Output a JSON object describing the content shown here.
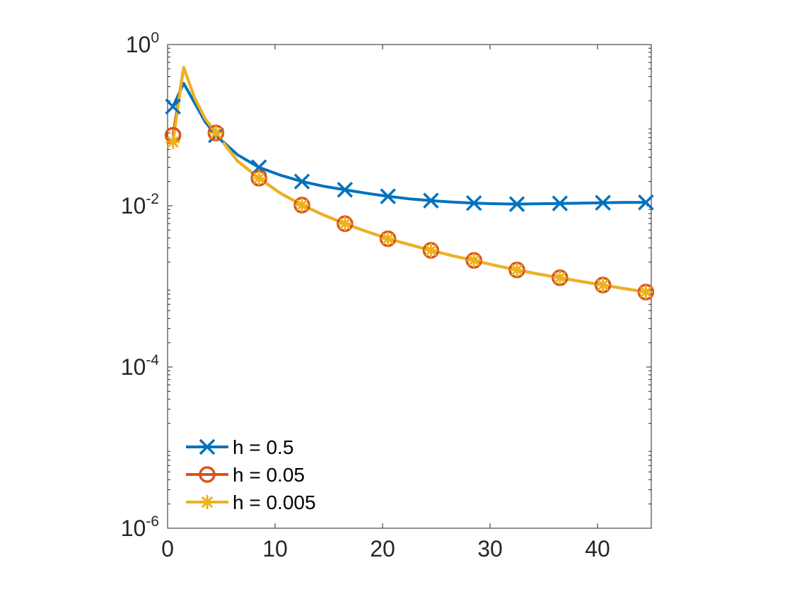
{
  "chart_data": {
    "type": "line",
    "title": "",
    "xlabel": "",
    "ylabel": "",
    "yscale": "log",
    "xlim": [
      0,
      45
    ],
    "ylim": [
      1e-06,
      1
    ],
    "x_ticks": [
      0,
      10,
      20,
      30,
      40
    ],
    "y_ticks": [
      {
        "value": 1,
        "base": "10",
        "exp": "0"
      },
      {
        "value": 0.01,
        "base": "10",
        "exp": "-2"
      },
      {
        "value": 0.0001,
        "base": "10",
        "exp": "-4"
      },
      {
        "value": 1e-06,
        "base": "10",
        "exp": "-6"
      }
    ],
    "grid": false,
    "legend_position": "bottom-left",
    "series": [
      {
        "name": "h = 0.5",
        "color": "#0072BD",
        "marker": "x",
        "line_x": [
          0.5,
          1.5,
          2.5,
          3.5,
          4.5,
          6.5,
          8.5,
          10.5,
          12.5,
          14.5,
          16.5,
          18.5,
          20.5,
          22.5,
          24.5,
          26.5,
          28.5,
          30.5,
          32.5,
          34.5,
          36.5,
          38.5,
          40.5,
          42.5,
          44.5
        ],
        "line_y": [
          0.17,
          0.33,
          0.19,
          0.11,
          0.075,
          0.043,
          0.03,
          0.024,
          0.02,
          0.0175,
          0.0158,
          0.0143,
          0.0131,
          0.0122,
          0.0116,
          0.0111,
          0.0108,
          0.0106,
          0.0105,
          0.0106,
          0.0107,
          0.0108,
          0.0109,
          0.011,
          0.011
        ],
        "marker_x": [
          0.5,
          4.5,
          8.5,
          12.5,
          16.5,
          20.5,
          24.5,
          28.5,
          32.5,
          36.5,
          40.5,
          44.5
        ],
        "marker_y": [
          0.17,
          0.075,
          0.03,
          0.02,
          0.0158,
          0.0131,
          0.0116,
          0.0108,
          0.0105,
          0.0107,
          0.0109,
          0.011
        ]
      },
      {
        "name": "h = 0.05",
        "color": "#D95319",
        "marker": "o",
        "line_x": [
          0.5,
          1.5,
          2.5,
          3.5,
          4.5,
          6.5,
          8.5,
          10.5,
          12.5,
          14.5,
          16.5,
          18.5,
          20.5,
          22.5,
          24.5,
          26.5,
          28.5,
          30.5,
          32.5,
          34.5,
          36.5,
          38.5,
          40.5,
          42.5,
          44.5
        ],
        "line_y": [
          0.075,
          0.52,
          0.22,
          0.12,
          0.08,
          0.036,
          0.022,
          0.0143,
          0.0102,
          0.0077,
          0.006,
          0.0048,
          0.0039,
          0.0033,
          0.0028,
          0.0024,
          0.0021,
          0.00182,
          0.0016,
          0.00142,
          0.00128,
          0.00115,
          0.00104,
          0.00094,
          0.00085
        ],
        "marker_x": [
          0.5,
          4.5,
          8.5,
          12.5,
          16.5,
          20.5,
          24.5,
          28.5,
          32.5,
          36.5,
          40.5,
          44.5
        ],
        "marker_y": [
          0.075,
          0.08,
          0.022,
          0.0102,
          0.006,
          0.0039,
          0.0028,
          0.0021,
          0.0016,
          0.00128,
          0.00104,
          0.00085
        ]
      },
      {
        "name": "h = 0.005",
        "color": "#EDB120",
        "marker": "*",
        "line_x": [
          0.5,
          1.5,
          2.5,
          3.5,
          4.5,
          6.5,
          8.5,
          10.5,
          12.5,
          14.5,
          16.5,
          18.5,
          20.5,
          22.5,
          24.5,
          26.5,
          28.5,
          30.5,
          32.5,
          34.5,
          36.5,
          38.5,
          40.5,
          42.5,
          44.5
        ],
        "line_y": [
          0.062,
          0.52,
          0.22,
          0.12,
          0.08,
          0.036,
          0.022,
          0.0143,
          0.0102,
          0.0077,
          0.006,
          0.0048,
          0.0039,
          0.0033,
          0.0028,
          0.0024,
          0.0021,
          0.00182,
          0.0016,
          0.00142,
          0.00128,
          0.00115,
          0.00104,
          0.00094,
          0.00085
        ],
        "marker_x": [
          0.5,
          4.5,
          8.5,
          12.5,
          16.5,
          20.5,
          24.5,
          28.5,
          32.5,
          36.5,
          40.5,
          44.5
        ],
        "marker_y": [
          0.062,
          0.08,
          0.022,
          0.0102,
          0.006,
          0.0039,
          0.0028,
          0.0021,
          0.0016,
          0.00128,
          0.00104,
          0.00085
        ]
      }
    ]
  }
}
